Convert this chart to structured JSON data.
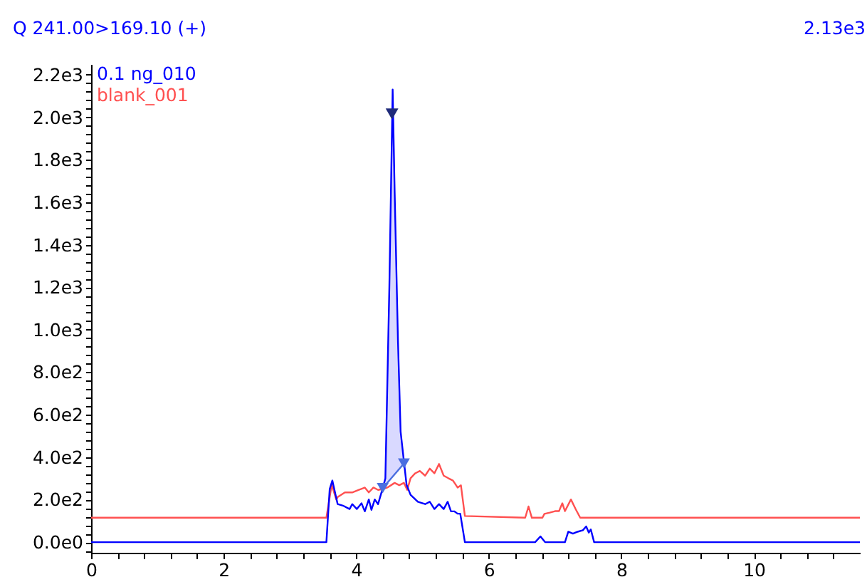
{
  "chart_data": {
    "type": "line",
    "title": "Q 241.00>169.10 (+)",
    "annotations": [
      "2.13e3"
    ],
    "legend": "top left",
    "xlim": [
      0,
      11.6
    ],
    "xticks": [
      0,
      {
        "value": 0.4,
        "label": null
      },
      {
        "value": 0.8,
        "label": null
      },
      {
        "value": 1.2,
        "label": null
      },
      {
        "value": 1.6,
        "label": null
      },
      2,
      {
        "value": 2.4,
        "label": null
      },
      {
        "value": 2.8,
        "label": null
      },
      {
        "value": 3.2,
        "label": null
      },
      {
        "value": 3.6,
        "label": null
      },
      4,
      {
        "value": 4.4,
        "label": null
      },
      {
        "value": 4.8,
        "label": null
      },
      {
        "value": 5.2,
        "label": null
      },
      {
        "value": 5.6,
        "label": null
      },
      6,
      {
        "value": 6.4,
        "label": null
      },
      {
        "value": 6.8,
        "label": null
      },
      {
        "value": 7.2,
        "label": null
      },
      {
        "value": 7.6,
        "label": null
      },
      8,
      {
        "value": 8.4,
        "label": null
      },
      {
        "value": 8.8,
        "label": null
      },
      {
        "value": 9.2,
        "label": null
      },
      {
        "value": 9.6,
        "label": null
      },
      10,
      {
        "value": 10.4,
        "label": null
      },
      {
        "value": 10.8,
        "label": null
      },
      {
        "value": 11.2,
        "label": null
      }
    ],
    "ylim": [
      -50,
      2250
    ],
    "yticks": [
      {
        "value": -40,
        "label": null
      },
      {
        "value": 0,
        "label": "0.0e0"
      },
      {
        "value": 40,
        "label": null
      },
      {
        "value": 80,
        "label": null
      },
      {
        "value": 120,
        "label": null
      },
      {
        "value": 160,
        "label": null
      },
      {
        "value": 200,
        "label": "2.0e2"
      },
      {
        "value": 240,
        "label": null
      },
      {
        "value": 280,
        "label": null
      },
      {
        "value": 320,
        "label": null
      },
      {
        "value": 360,
        "label": null
      },
      {
        "value": 400,
        "label": "4.0e2"
      },
      {
        "value": 440,
        "label": null
      },
      {
        "value": 480,
        "label": null
      },
      {
        "value": 520,
        "label": null
      },
      {
        "value": 560,
        "label": null
      },
      {
        "value": 600,
        "label": "6.0e2"
      },
      {
        "value": 640,
        "label": null
      },
      {
        "value": 680,
        "label": null
      },
      {
        "value": 720,
        "label": null
      },
      {
        "value": 760,
        "label": null
      },
      {
        "value": 800,
        "label": "8.0e2"
      },
      {
        "value": 840,
        "label": null
      },
      {
        "value": 880,
        "label": null
      },
      {
        "value": 920,
        "label": null
      },
      {
        "value": 960,
        "label": null
      },
      {
        "value": 1000,
        "label": "1.0e3"
      },
      {
        "value": 1040,
        "label": null
      },
      {
        "value": 1080,
        "label": null
      },
      {
        "value": 1120,
        "label": null
      },
      {
        "value": 1160,
        "label": null
      },
      {
        "value": 1200,
        "label": "1.2e3"
      },
      {
        "value": 1240,
        "label": null
      },
      {
        "value": 1280,
        "label": null
      },
      {
        "value": 1320,
        "label": null
      },
      {
        "value": 1360,
        "label": null
      },
      {
        "value": 1400,
        "label": "1.4e3"
      },
      {
        "value": 1440,
        "label": null
      },
      {
        "value": 1480,
        "label": null
      },
      {
        "value": 1520,
        "label": null
      },
      {
        "value": 1560,
        "label": null
      },
      {
        "value": 1600,
        "label": "1.6e3"
      },
      {
        "value": 1640,
        "label": null
      },
      {
        "value": 1680,
        "label": null
      },
      {
        "value": 1720,
        "label": null
      },
      {
        "value": 1760,
        "label": null
      },
      {
        "value": 1800,
        "label": "1.8e3"
      },
      {
        "value": 1840,
        "label": null
      },
      {
        "value": 1880,
        "label": null
      },
      {
        "value": 1920,
        "label": null
      },
      {
        "value": 1960,
        "label": null
      },
      {
        "value": 2000,
        "label": "2.0e3"
      },
      {
        "value": 2040,
        "label": null
      },
      {
        "value": 2080,
        "label": null
      },
      {
        "value": 2120,
        "label": null
      },
      {
        "value": 2160,
        "label": null
      },
      {
        "value": 2200,
        "label": "2.2e3"
      }
    ],
    "series": [
      {
        "name": "0.1 ng_010",
        "color": "#0000ff",
        "x": [
          0,
          3.55,
          3.6,
          3.64,
          3.72,
          3.8,
          3.9,
          3.94,
          4.01,
          4.08,
          4.13,
          4.19,
          4.23,
          4.28,
          4.33,
          4.4,
          4.44,
          4.5,
          4.55,
          4.58,
          4.63,
          4.67,
          4.72,
          4.76,
          4.82,
          4.93,
          5.04,
          5.11,
          5.18,
          5.25,
          5.32,
          5.38,
          5.43,
          5.48,
          5.53,
          5.57,
          5.64,
          6.7,
          6.78,
          6.85,
          7.15,
          7.2,
          7.27,
          7.34,
          7.42,
          7.47,
          7.51,
          7.54,
          7.59,
          11.6
        ],
        "values": [
          0,
          0,
          250,
          290,
          179,
          172,
          156,
          179,
          156,
          183,
          145,
          201,
          152,
          201,
          179,
          254,
          300,
          1200,
          2130,
          1650,
          950,
          520,
          380,
          270,
          223,
          190,
          179,
          190,
          156,
          179,
          156,
          190,
          145,
          145,
          134,
          134,
          0,
          0,
          27,
          0,
          0,
          49,
          40,
          49,
          56,
          74,
          45,
          60,
          0,
          0
        ],
        "lower": [
          null,
          null,
          null,
          null,
          null,
          null,
          null,
          null,
          null,
          null,
          null,
          null,
          null,
          null,
          null,
          254,
          268,
          290,
          308,
          319,
          337,
          352,
          370,
          null,
          null,
          null,
          null,
          null,
          null,
          null,
          null,
          null,
          null,
          null,
          null,
          null,
          null,
          null,
          null,
          null,
          null,
          null,
          null,
          null,
          null,
          null,
          null,
          null,
          null,
          null
        ],
        "upper": [
          null,
          null,
          null,
          null,
          null,
          null,
          null,
          null,
          null,
          null,
          null,
          null,
          null,
          null,
          null,
          254,
          300,
          1200,
          2130,
          1650,
          950,
          520,
          380,
          null,
          null,
          null,
          null,
          null,
          null,
          null,
          null,
          null,
          null,
          null,
          null,
          null,
          null,
          null,
          null,
          null,
          null,
          null,
          null,
          null,
          null,
          null,
          null,
          null,
          null,
          null
        ]
      },
      {
        "name": "blank_001",
        "color": "#ff5050",
        "x": [
          0,
          3.55,
          3.63,
          3.7,
          3.72,
          3.83,
          3.94,
          4.04,
          4.13,
          4.19,
          4.26,
          4.33,
          4.4,
          4.47,
          4.58,
          4.65,
          4.72,
          4.77,
          4.82,
          4.89,
          4.96,
          5.04,
          5.11,
          5.18,
          5.25,
          5.32,
          5.39,
          5.46,
          5.53,
          5.58,
          5.64,
          6.55,
          6.6,
          6.65,
          6.81,
          6.84,
          6.92,
          7.0,
          7.06,
          7.11,
          7.15,
          7.24,
          7.31,
          7.38,
          11.6
        ],
        "values": [
          115,
          115,
          270,
          200,
          212,
          234,
          234,
          246,
          257,
          234,
          257,
          246,
          250,
          257,
          279,
          268,
          279,
          246,
          301,
          324,
          335,
          313,
          346,
          324,
          368,
          313,
          301,
          290,
          257,
          268,
          123,
          115,
          168,
          115,
          115,
          133,
          139,
          146,
          146,
          183,
          146,
          201,
          156,
          115,
          115
        ]
      },
      {
        "type": "line",
        "color": "#4a6ee0",
        "marker": "triangle",
        "x": [
          4.4,
          4.72
        ],
        "values": [
          254,
          370
        ]
      },
      {
        "type": "scatter",
        "color": "#1f2b7a",
        "marker": "triangle",
        "x": [
          4.54
        ],
        "values": [
          2015
        ]
      }
    ]
  }
}
